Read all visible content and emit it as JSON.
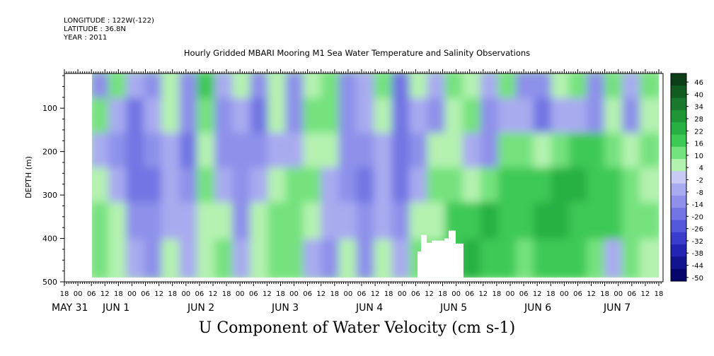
{
  "header": {
    "longitude": "LONGITUDE : 122W(-122)",
    "latitude": "LATITUDE : 36.8N",
    "year": "YEAR : 2011"
  },
  "chart_data": {
    "type": "heatmap",
    "title": "Hourly Gridded MBARI Mooring M1 Sea Water Temperature and Salinity Observations",
    "xlabel": "U Component of Water Velocity (cm s-1)",
    "ylabel": "DEPTH (m)",
    "yticks": [
      100,
      200,
      300,
      400,
      500
    ],
    "ylim": [
      500,
      20
    ],
    "hour_ticks": [
      "18",
      "00",
      "06",
      "12",
      "18",
      "00",
      "06",
      "12",
      "18",
      "00",
      "06",
      "12",
      "18",
      "00",
      "06",
      "12",
      "18",
      "00",
      "06",
      "12",
      "18",
      "00",
      "06",
      "12",
      "18",
      "00",
      "06",
      "12",
      "18",
      "00",
      "06",
      "12",
      "18",
      "00",
      "06",
      "12",
      "18",
      "00",
      "06",
      "12",
      "18",
      "00",
      "06",
      "12",
      "18"
    ],
    "day_labels": [
      "MAY 31",
      "JUN  1",
      "JUN  2",
      "JUN  3",
      "JUN  4",
      "JUN  5",
      "JUN  6",
      "JUN  7"
    ],
    "colorbar": {
      "levels": [
        "46",
        "40",
        "34",
        "28",
        "22",
        "16",
        "10",
        "4",
        "-2",
        "-8",
        "-14",
        "-20",
        "-26",
        "-32",
        "-38",
        "-44",
        "-50"
      ],
      "colors": [
        "#0b3d16",
        "#125c22",
        "#19782c",
        "#1f9636",
        "#27b143",
        "#3dc955",
        "#74e27e",
        "#b4f2b0",
        "#c9caf5",
        "#a9abf0",
        "#8e90ea",
        "#7275e3",
        "#5458da",
        "#3a3dcb",
        "#2325b2",
        "#12148f",
        "#05066c"
      ]
    },
    "field": {
      "description_rows": "depth bands from 20 to 490 m",
      "columns_per_6h": 1,
      "pattern": [
        [
          -10,
          14,
          -8,
          -14,
          4,
          -10,
          18,
          -6,
          6,
          -12,
          8,
          -14,
          6,
          10,
          -10,
          -4,
          10,
          -16,
          8,
          -8,
          12,
          4,
          -6,
          10,
          -10,
          -14,
          8,
          10,
          -10,
          14,
          -8,
          12
        ],
        [
          10,
          -4,
          -16,
          -8,
          8,
          -14,
          12,
          -10,
          -4,
          -16,
          4,
          -10,
          10,
          12,
          -14,
          -8,
          8,
          -20,
          -4,
          -10,
          8,
          10,
          -12,
          -6,
          -8,
          -16,
          -6,
          -4,
          -12,
          8,
          -10,
          6
        ],
        [
          -6,
          -10,
          -20,
          -14,
          -4,
          -16,
          4,
          -12,
          -14,
          -10,
          -6,
          -4,
          8,
          6,
          -12,
          -14,
          -6,
          -18,
          -10,
          8,
          4,
          -4,
          -10,
          14,
          10,
          8,
          12,
          16,
          18,
          10,
          6,
          10
        ],
        [
          8,
          -4,
          -18,
          -16,
          -6,
          -12,
          10,
          -8,
          -12,
          -4,
          6,
          10,
          12,
          -4,
          -10,
          -16,
          -8,
          -20,
          -6,
          10,
          12,
          8,
          14,
          18,
          16,
          20,
          22,
          26,
          20,
          16,
          12,
          8
        ],
        [
          12,
          4,
          -10,
          -14,
          -4,
          -6,
          8,
          6,
          -10,
          8,
          10,
          14,
          6,
          -8,
          -6,
          -14,
          -4,
          -12,
          4,
          8,
          16,
          18,
          22,
          20,
          18,
          22,
          24,
          20,
          18,
          16,
          14,
          10
        ],
        [
          10,
          8,
          -4,
          -10,
          6,
          -8,
          4,
          10,
          -6,
          6,
          12,
          10,
          -4,
          -10,
          4,
          -12,
          6,
          -8,
          10,
          14,
          20,
          22,
          18,
          16,
          14,
          18,
          20,
          16,
          12,
          -8,
          10,
          8
        ]
      ],
      "depths": [
        40,
        120,
        200,
        280,
        360,
        450
      ],
      "blank_regions": [
        {
          "x0": 0,
          "x1": 3,
          "y0": 0,
          "y1": 500
        },
        {
          "x0": 86.5,
          "x1": 97,
          "y0": 380,
          "y1": 490
        }
      ]
    }
  }
}
